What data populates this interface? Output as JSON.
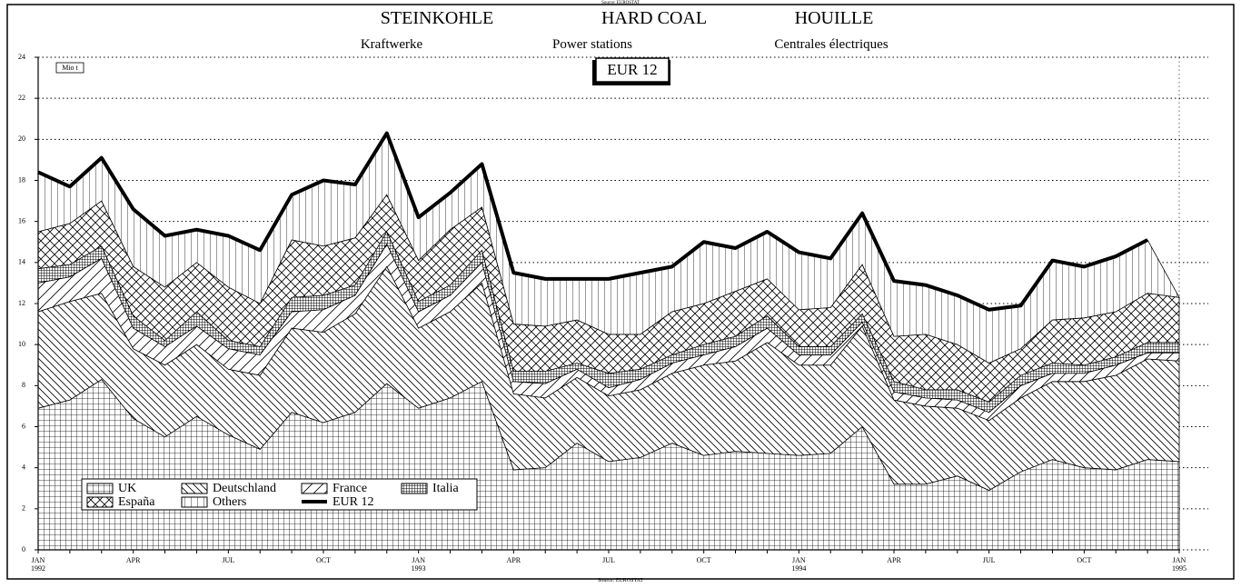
{
  "chart_data": {
    "type": "stacked-area",
    "source_top": "Source: EUROSTAT",
    "source_bottom": "Source: EUROSTAT",
    "titles": [
      "STEINKOHLE",
      "HARD COAL",
      "HOUILLE"
    ],
    "subtitles": [
      "Kraftwerke",
      "Power stations",
      "Centrales électriques"
    ],
    "region_label": "EUR 12",
    "unit": "Mio t",
    "categories": [
      "JAN",
      null,
      null,
      "APR",
      null,
      null,
      "JUL",
      null,
      null,
      "OCT",
      null,
      null,
      "JAN",
      null,
      null,
      "APR",
      null,
      null,
      "JUL",
      null,
      null,
      "OCT",
      null,
      null,
      "JAN",
      null,
      null,
      "APR",
      null,
      null,
      "JUL",
      null,
      null,
      "OCT",
      null,
      null,
      "JAN"
    ],
    "year_labels": [
      "1992",
      null,
      null,
      null,
      null,
      null,
      null,
      null,
      null,
      null,
      null,
      null,
      "1993",
      null,
      null,
      null,
      null,
      null,
      null,
      null,
      null,
      null,
      null,
      null,
      "1994",
      null,
      null,
      null,
      null,
      null,
      null,
      null,
      null,
      null,
      null,
      null,
      "1995"
    ],
    "ylim": [
      0,
      24
    ],
    "yticks": [
      0,
      2,
      4,
      6,
      8,
      10,
      12,
      14,
      16,
      18,
      20,
      22,
      24
    ],
    "grid": true,
    "series": [
      {
        "name": "UK",
        "color": "#000000",
        "pattern": "grid",
        "values": [
          6.9,
          7.3,
          8.3,
          6.4,
          5.5,
          6.5,
          5.6,
          4.9,
          6.7,
          6.2,
          6.7,
          8.1,
          6.9,
          7.4,
          8.2,
          3.9,
          4.0,
          5.2,
          4.3,
          4.5,
          5.2,
          4.6,
          4.8,
          4.7,
          4.6,
          4.7,
          6.0,
          3.2,
          3.2,
          3.6,
          2.9,
          3.8,
          4.4,
          4.0,
          3.9,
          4.4,
          4.3
        ]
      },
      {
        "name": "Deutschland",
        "color": "#000000",
        "pattern": "diag-down",
        "values": [
          4.7,
          4.8,
          4.2,
          3.4,
          3.5,
          3.5,
          3.2,
          3.6,
          4.1,
          4.4,
          4.8,
          5.7,
          3.9,
          4.2,
          4.8,
          3.7,
          3.4,
          3.2,
          3.2,
          3.3,
          3.4,
          4.4,
          4.4,
          5.4,
          4.4,
          4.3,
          4.9,
          4.1,
          3.8,
          3.3,
          3.4,
          3.6,
          3.8,
          4.2,
          4.6,
          4.9,
          4.9
        ]
      },
      {
        "name": "France",
        "color": "#000000",
        "pattern": "diag-up",
        "values": [
          1.4,
          1.2,
          1.7,
          1.0,
          0.9,
          0.9,
          1.0,
          1.0,
          0.8,
          1.1,
          0.9,
          1.1,
          0.8,
          0.8,
          1.0,
          0.6,
          0.7,
          0.4,
          0.4,
          0.5,
          0.5,
          0.5,
          0.7,
          0.7,
          0.5,
          0.5,
          0.2,
          0.4,
          0.4,
          0.4,
          0.4,
          0.6,
          0.4,
          0.4,
          0.5,
          0.3,
          0.4
        ]
      },
      {
        "name": "Italia",
        "color": "#000000",
        "pattern": "dense-grid",
        "values": [
          0.7,
          0.6,
          0.6,
          0.6,
          0.3,
          0.7,
          0.4,
          0.4,
          0.7,
          0.7,
          0.5,
          0.6,
          0.5,
          0.5,
          0.6,
          0.5,
          0.6,
          0.3,
          0.7,
          0.5,
          0.4,
          0.5,
          0.5,
          0.6,
          0.4,
          0.4,
          0.4,
          0.5,
          0.4,
          0.5,
          0.5,
          0.5,
          0.5,
          0.4,
          0.4,
          0.5,
          0.5
        ]
      },
      {
        "name": "España",
        "color": "#000000",
        "pattern": "cross",
        "values": [
          1.8,
          2.0,
          2.2,
          2.4,
          2.6,
          2.4,
          2.6,
          2.1,
          2.8,
          2.4,
          2.3,
          1.8,
          2.0,
          2.7,
          2.1,
          2.3,
          2.2,
          2.1,
          1.9,
          1.7,
          2.1,
          2.0,
          2.2,
          1.8,
          1.8,
          1.9,
          2.4,
          2.2,
          2.7,
          2.2,
          1.9,
          1.3,
          2.1,
          2.3,
          2.2,
          2.4,
          2.2
        ]
      },
      {
        "name": "Others",
        "color": "#000000",
        "pattern": "vertical",
        "values": [
          2.9,
          1.8,
          2.1,
          2.8,
          2.5,
          1.6,
          2.5,
          2.6,
          2.2,
          3.2,
          2.6,
          3.0,
          2.1,
          1.8,
          2.1,
          2.5,
          2.3,
          2.0,
          2.7,
          3.0,
          2.2,
          3.0,
          2.1,
          2.3,
          2.8,
          2.4,
          2.5,
          2.7,
          2.4,
          2.4,
          2.6,
          2.1,
          2.9,
          2.5,
          2.7,
          2.6,
          0
        ]
      },
      {
        "name": "EUR 12",
        "color": "#000000",
        "kind": "line",
        "values": [
          18.4,
          17.7,
          19.1,
          16.6,
          15.3,
          15.6,
          15.3,
          14.6,
          17.3,
          18.0,
          17.8,
          20.3,
          16.2,
          17.4,
          18.8,
          13.5,
          13.2,
          13.2,
          13.2,
          13.5,
          13.8,
          15.0,
          14.7,
          15.5,
          14.5,
          14.2,
          16.4,
          13.1,
          12.9,
          12.4,
          11.7,
          11.9,
          14.1,
          13.8,
          14.3,
          15.1,
          null
        ]
      }
    ]
  }
}
